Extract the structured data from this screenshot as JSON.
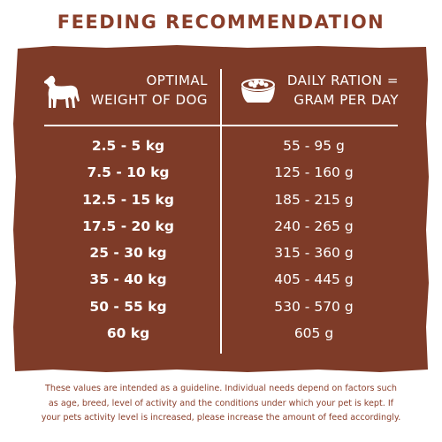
{
  "title": "FEEDING RECOMMENDATION",
  "colors": {
    "brand_brown": "#7e3b28",
    "title_brown": "#8a3e2a",
    "text_white": "#ffffff"
  },
  "icons": {
    "left_header": "dog-icon",
    "right_header": "food-bowl-icon"
  },
  "table": {
    "header_weight": {
      "line1": "OPTIMAL",
      "line2": "WEIGHT OF DOG"
    },
    "header_ration": {
      "line1": "DAILY RATION =",
      "line2": "GRAM PER DAY"
    },
    "rows": [
      {
        "weight": "2.5 - 5 kg",
        "ration": "55 - 95 g"
      },
      {
        "weight": "7.5 - 10 kg",
        "ration": "125 - 160 g"
      },
      {
        "weight": "12.5 - 15 kg",
        "ration": "185 - 215 g"
      },
      {
        "weight": "17.5 - 20 kg",
        "ration": "240 - 265 g"
      },
      {
        "weight": "25 - 30 kg",
        "ration": "315 - 360 g"
      },
      {
        "weight": "35 - 40 kg",
        "ration": "405 - 445 g"
      },
      {
        "weight": "50 - 55 kg",
        "ration": "530 - 570 g"
      },
      {
        "weight": "60 kg",
        "ration": "605 g"
      }
    ]
  },
  "footnote": {
    "line1": "These values are intended as a guideline. Individual needs depend on factors such",
    "line2": "as age, breed, level of activity and the conditions under which your pet is kept. If",
    "line3": "your pets activity level is increased, please increase the amount of feed accordingly."
  }
}
